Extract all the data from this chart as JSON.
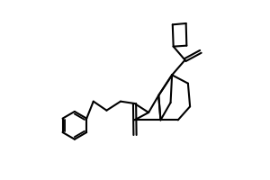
{
  "bg_color": "#ffffff",
  "line_color": "#000000",
  "line_width": 1.5,
  "figsize": [
    3.0,
    2.0
  ],
  "dpi": 100
}
